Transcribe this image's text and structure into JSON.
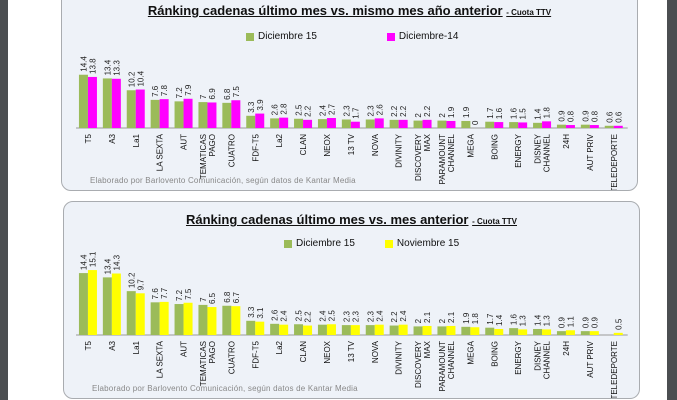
{
  "chart_data": [
    {
      "type": "bar",
      "title": "Ránking cadenas último mes vs. mismo mes año anterior",
      "subtitle": "- Cuota TTV",
      "categories": [
        "T5",
        "A3",
        "La1",
        "LA SEXTA",
        "AUT",
        "TEMATICAS\nPAGO",
        "CUATRO",
        "FDF-T5",
        "La2",
        "CLAN",
        "NEOX",
        "13 TV",
        "NOVA",
        "DIVINITY",
        "DISCOVERY\nMAX",
        "PARAMOUNT\nCHANNEL",
        "MEGA",
        "BOING",
        "ENERGY",
        "DISNEY\nCHANNEL",
        "24H",
        "AUT PRIV",
        "TELEDEPORTE"
      ],
      "series": [
        {
          "name": "Diciembre 15",
          "color": "#9bbb59",
          "values": [
            14.4,
            13.4,
            10.2,
            7.6,
            7.2,
            7,
            6.8,
            3.3,
            2.6,
            2.5,
            2.4,
            2.3,
            2.3,
            2.2,
            2,
            2,
            1.9,
            1.7,
            1.6,
            1.4,
            0.9,
            0.9,
            0.6
          ]
        },
        {
          "name": "Diciembre-14",
          "color": "#ff00ff",
          "values": [
            13.8,
            13.3,
            10.4,
            7.8,
            7.9,
            6.9,
            7.5,
            3.9,
            2.8,
            2.2,
            2.7,
            1.7,
            2.6,
            2.2,
            2.2,
            1.9,
            0,
            1.6,
            1.5,
            1.8,
            0.8,
            0.8,
            0.6
          ]
        }
      ],
      "legend": "top",
      "grid": false,
      "footer": "Elaborado por Barlovento Comunicación, según datos de Kantar Media"
    },
    {
      "type": "bar",
      "title": "Ránking cadenas último mes vs. mes anterior",
      "subtitle": "- Cuota TTV",
      "categories": [
        "T5",
        "A3",
        "La1",
        "LA SEXTA",
        "AUT",
        "TEMATICAS\nPAGO",
        "CUATRO",
        "FDF-T5",
        "La2",
        "CLAN",
        "NEOX",
        "13 TV",
        "NOVA",
        "DIVINITY",
        "DISCOVERY\nMAX",
        "PARAMOUNT\nCHANNEL",
        "MEGA",
        "BOING",
        "ENERGY",
        "DISNEY\nCHANNEL",
        "24H",
        "AUT PRIV",
        "TELEDEPORTE"
      ],
      "series": [
        {
          "name": "Diciembre 15",
          "color": "#9bbb59",
          "values": [
            14.4,
            13.4,
            10.2,
            7.6,
            7.2,
            7,
            6.8,
            3.3,
            2.6,
            2.5,
            2.4,
            2.3,
            2.3,
            2.2,
            2,
            2,
            1.9,
            1.7,
            1.6,
            1.4,
            0.9,
            0.9,
            null
          ]
        },
        {
          "name": "Noviembre 15",
          "color": "#ffff00",
          "values": [
            15.1,
            14.3,
            9.7,
            7.7,
            7.5,
            6.5,
            6.7,
            3.1,
            2.4,
            2.2,
            2.5,
            2.3,
            2.4,
            2.4,
            2.1,
            2.1,
            1.8,
            1.4,
            1.3,
            1.3,
            1.1,
            0.9,
            0.5
          ]
        }
      ],
      "legend": "top",
      "grid": false,
      "footer": "Elaborado por Barlovento Comunicación, según datos de Kantar Media"
    }
  ]
}
